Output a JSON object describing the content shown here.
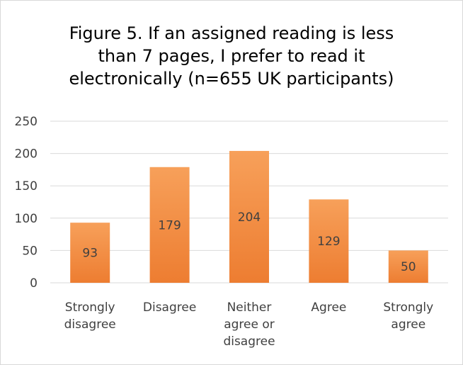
{
  "chart_data": {
    "type": "bar",
    "title_lines": [
      "Figure 5. If an assigned reading is less",
      "than 7 pages, I prefer to read it",
      "electronically (n=655 UK participants)"
    ],
    "categories": [
      [
        "Strongly",
        "disagree"
      ],
      [
        "Disagree"
      ],
      [
        "Neither",
        "agree or",
        "disagree"
      ],
      [
        "Agree"
      ],
      [
        "Strongly",
        "agree"
      ]
    ],
    "values": [
      93,
      179,
      204,
      129,
      50
    ],
    "ylim": [
      0,
      250
    ],
    "yticks": [
      0,
      50,
      100,
      150,
      200,
      250
    ],
    "grid": true,
    "legend": "none",
    "bar_color_top": "#f7a05a",
    "bar_color_bottom": "#ed7d31",
    "grid_color": "#d9d9d9"
  }
}
